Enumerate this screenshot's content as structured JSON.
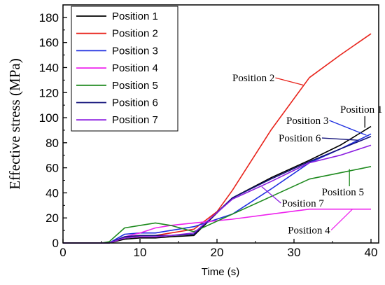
{
  "chart_data": {
    "type": "line",
    "xlabel": "Time (s)",
    "ylabel": "Effective stress (MPa)",
    "xlim": [
      0,
      41
    ],
    "ylim": [
      0,
      190
    ],
    "xticks": [
      0,
      10,
      20,
      30,
      40
    ],
    "yticks": [
      0,
      20,
      40,
      60,
      80,
      100,
      120,
      140,
      160,
      180
    ],
    "grid": false,
    "legend_position": "top-left",
    "series": [
      {
        "name": "Position 1",
        "color": "#000000",
        "points": [
          [
            0,
            0
          ],
          [
            5,
            0
          ],
          [
            6,
            0
          ],
          [
            8,
            3
          ],
          [
            10,
            4
          ],
          [
            12,
            4
          ],
          [
            14,
            5
          ],
          [
            17,
            6
          ],
          [
            22,
            36
          ],
          [
            27,
            52
          ],
          [
            32,
            66
          ],
          [
            36,
            78
          ],
          [
            40,
            93
          ]
        ]
      },
      {
        "name": "Position 2",
        "color": "#e8231b",
        "points": [
          [
            0,
            0
          ],
          [
            5,
            0
          ],
          [
            6,
            0
          ],
          [
            8,
            4
          ],
          [
            10,
            6
          ],
          [
            12,
            6
          ],
          [
            14,
            8
          ],
          [
            17,
            11
          ],
          [
            20,
            25
          ],
          [
            22,
            42
          ],
          [
            27,
            90
          ],
          [
            32,
            132
          ],
          [
            36,
            150
          ],
          [
            40,
            167
          ]
        ]
      },
      {
        "name": "Position 3",
        "color": "#1f2fe0",
        "points": [
          [
            0,
            0
          ],
          [
            5,
            0
          ],
          [
            6,
            0
          ],
          [
            8,
            7
          ],
          [
            10,
            8
          ],
          [
            12,
            8
          ],
          [
            14,
            10
          ],
          [
            17,
            13
          ],
          [
            22,
            23
          ],
          [
            27,
            43
          ],
          [
            32,
            64
          ],
          [
            36,
            75
          ],
          [
            40,
            87
          ]
        ]
      },
      {
        "name": "Position 4",
        "color": "#ee22ee",
        "points": [
          [
            0,
            0
          ],
          [
            5,
            0
          ],
          [
            6,
            0
          ],
          [
            8,
            5
          ],
          [
            10,
            8
          ],
          [
            12,
            12
          ],
          [
            14,
            14
          ],
          [
            17,
            16
          ],
          [
            22,
            19
          ],
          [
            27,
            23
          ],
          [
            32,
            27
          ],
          [
            36,
            27
          ],
          [
            40,
            27
          ]
        ]
      },
      {
        "name": "Position 5",
        "color": "#1e8a1e",
        "points": [
          [
            0,
            0
          ],
          [
            5,
            0
          ],
          [
            6,
            1
          ],
          [
            8,
            12
          ],
          [
            10,
            14
          ],
          [
            12,
            16
          ],
          [
            14,
            14
          ],
          [
            17,
            9
          ],
          [
            22,
            23
          ],
          [
            27,
            37
          ],
          [
            32,
            51
          ],
          [
            36,
            56
          ],
          [
            40,
            61
          ]
        ]
      },
      {
        "name": "Position 6",
        "color": "#12127a",
        "points": [
          [
            0,
            0
          ],
          [
            5,
            0
          ],
          [
            6,
            0
          ],
          [
            8,
            5
          ],
          [
            10,
            6
          ],
          [
            12,
            6
          ],
          [
            14,
            6
          ],
          [
            17,
            7
          ],
          [
            22,
            36
          ],
          [
            27,
            51
          ],
          [
            32,
            65
          ],
          [
            36,
            75
          ],
          [
            40,
            85
          ]
        ]
      },
      {
        "name": "Position 7",
        "color": "#8b1ee0",
        "points": [
          [
            0,
            0
          ],
          [
            5,
            0
          ],
          [
            6,
            0
          ],
          [
            8,
            4
          ],
          [
            10,
            5
          ],
          [
            12,
            5
          ],
          [
            14,
            6
          ],
          [
            17,
            8
          ],
          [
            22,
            35
          ],
          [
            27,
            49
          ],
          [
            32,
            64
          ],
          [
            36,
            70
          ],
          [
            40,
            78
          ]
        ]
      }
    ],
    "annotations": [
      {
        "text": "Position 2",
        "series": "Position 2",
        "target": [
          31.2,
          126
        ],
        "label_at": [
          22,
          129
        ]
      },
      {
        "text": "Position 1",
        "series": "Position 1",
        "target": [
          39.2,
          92
        ],
        "label_at": [
          36,
          104
        ]
      },
      {
        "text": "Position 3",
        "series": "Position 3",
        "target": [
          39.4,
          86
        ],
        "label_at": [
          29,
          95
        ]
      },
      {
        "text": "Position 6",
        "series": "Position 6",
        "target": [
          38.4,
          82
        ],
        "label_at": [
          28,
          81
        ]
      },
      {
        "text": "Position 5",
        "series": "Position 5",
        "target": [
          37.2,
          59
        ],
        "label_at": [
          33.6,
          38
        ]
      },
      {
        "text": "Position 7",
        "series": "Position 7",
        "target": [
          25.8,
          45
        ],
        "label_at": [
          28.4,
          29
        ]
      },
      {
        "text": "Position 4",
        "series": "Position 4",
        "target": [
          37.6,
          27
        ],
        "label_at": [
          29.2,
          7.5
        ]
      }
    ]
  }
}
